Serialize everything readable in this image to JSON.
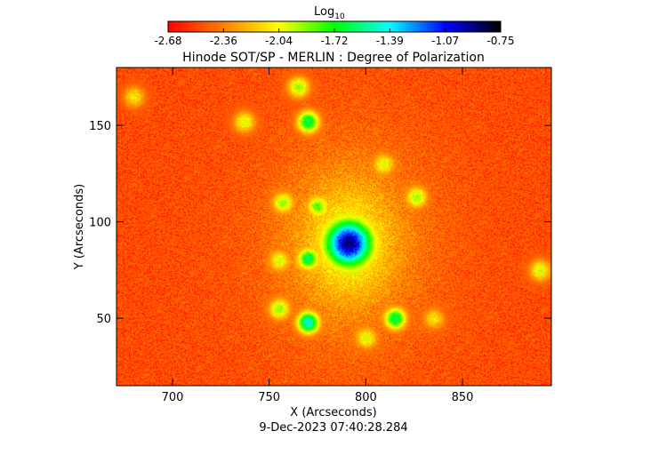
{
  "chart_data": {
    "type": "heatmap",
    "title": "Hinode SOT/SP - MERLIN : Degree of Polarization",
    "xlabel": "X (Arcseconds)",
    "ylabel": "Y (Arcseconds)",
    "timestamp": "9-Dec-2023 07:40:28.284",
    "xlim": [
      671,
      896
    ],
    "ylim": [
      15,
      180
    ],
    "x_ticks": [
      700,
      750,
      800,
      850
    ],
    "y_ticks": [
      50,
      100,
      150
    ],
    "colorbar": {
      "label": "Log",
      "label_subscript": "10",
      "ticks": [
        "-2.68",
        "-2.36",
        "-2.04",
        "-1.72",
        "-1.39",
        "-1.07",
        "-0.75"
      ],
      "range": [
        -2.68,
        -0.75
      ],
      "colormap": [
        "#ff0000",
        "#ff8000",
        "#ffff00",
        "#00ff00",
        "#00ffff",
        "#0000ff",
        "#000000"
      ]
    },
    "background_level": -2.55,
    "features": [
      {
        "name": "sunspot",
        "x": 791,
        "y": 89,
        "level": -0.9
      },
      {
        "x": 775,
        "y": 108,
        "level": -1.8
      },
      {
        "x": 755,
        "y": 80,
        "level": -2.0
      },
      {
        "x": 815,
        "y": 50,
        "level": -1.6
      },
      {
        "x": 770,
        "y": 48,
        "level": -1.4
      },
      {
        "x": 800,
        "y": 40,
        "level": -2.0
      },
      {
        "x": 757,
        "y": 110,
        "level": -1.9
      },
      {
        "x": 737,
        "y": 152,
        "level": -2.0
      },
      {
        "x": 680,
        "y": 165,
        "level": -2.1
      },
      {
        "x": 755,
        "y": 55,
        "level": -1.9
      },
      {
        "x": 809,
        "y": 130,
        "level": -2.0
      },
      {
        "x": 826,
        "y": 113,
        "level": -1.9
      },
      {
        "x": 770,
        "y": 152,
        "level": -1.6
      },
      {
        "x": 765,
        "y": 170,
        "level": -1.9
      },
      {
        "x": 835,
        "y": 50,
        "level": -2.1
      },
      {
        "x": 890,
        "y": 75,
        "level": -2.0
      },
      {
        "x": 770,
        "y": 81,
        "level": -1.6
      }
    ]
  }
}
